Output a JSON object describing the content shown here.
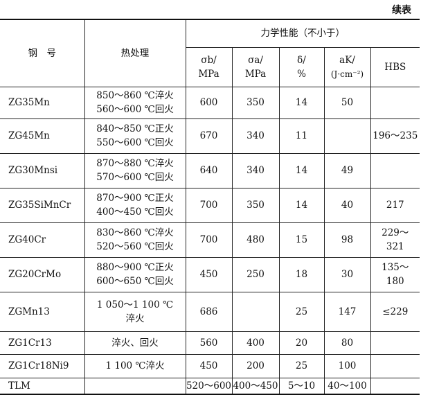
{
  "caption": "续表",
  "header": {
    "steel": "钢　号",
    "heat": "热处理",
    "mech": "力学性能（不小于）",
    "cols": [
      {
        "sym": "σb/",
        "unit": "MPa"
      },
      {
        "sym": "σa/",
        "unit": "MPa"
      },
      {
        "sym": "δ/",
        "unit": "%"
      },
      {
        "sym": "aK/",
        "unit": "(J·cm⁻²)"
      }
    ],
    "hbs": "HBS"
  },
  "rows": [
    {
      "steel": "ZG35Mn",
      "heat": [
        "850～860 ℃淬火",
        "560～600 ℃回火"
      ],
      "sb": "600",
      "sa": "350",
      "d": "14",
      "ak": "50",
      "hbs": ""
    },
    {
      "steel": "ZG45Mn",
      "heat": [
        "840～850 ℃正火",
        "550～600 ℃回火"
      ],
      "sb": "670",
      "sa": "340",
      "d": "11",
      "ak": "",
      "hbs": "196～235"
    },
    {
      "steel": "ZG30Mnsi",
      "heat": [
        "870～880 ℃淬火",
        "570～600 ℃回火"
      ],
      "sb": "640",
      "sa": "340",
      "d": "14",
      "ak": "49",
      "hbs": ""
    },
    {
      "steel": "ZG35SiMnCr",
      "heat": [
        "870～900 ℃正火",
        "400～450 ℃回火"
      ],
      "sb": "700",
      "sa": "350",
      "d": "14",
      "ak": "40",
      "hbs": "217"
    },
    {
      "steel": "ZG40Cr",
      "heat": [
        "830～860 ℃淬火",
        "520～560 ℃回火"
      ],
      "sb": "700",
      "sa": "480",
      "d": "15",
      "ak": "98",
      "hbs": "229～\n321"
    },
    {
      "steel": "ZG20CrMo",
      "heat": [
        "880～900 ℃正火",
        "600～650 ℃回火"
      ],
      "sb": "450",
      "sa": "250",
      "d": "18",
      "ak": "30",
      "hbs": "135～\n180"
    },
    {
      "steel": "ZGMn13",
      "heat": [
        "1 050～1 100 ℃",
        "淬火"
      ],
      "sb": "686",
      "sa": "",
      "d": "25",
      "ak": "147",
      "hbs": "≤229"
    },
    {
      "steel": "ZG1Cr13",
      "heat": [
        "淬火、回火",
        ""
      ],
      "sb": "560",
      "sa": "400",
      "d": "20",
      "ak": "80",
      "hbs": ""
    },
    {
      "steel": "ZG1Cr18Ni9",
      "heat": [
        "1 100 ℃淬火",
        ""
      ],
      "sb": "450",
      "sa": "200",
      "d": "25",
      "ak": "100",
      "hbs": ""
    },
    {
      "steel": "TLM",
      "heat": [
        "",
        ""
      ],
      "sb": "520～600",
      "sa": "400～450",
      "d": "5～10",
      "ak": "40～100",
      "hbs": ""
    }
  ]
}
